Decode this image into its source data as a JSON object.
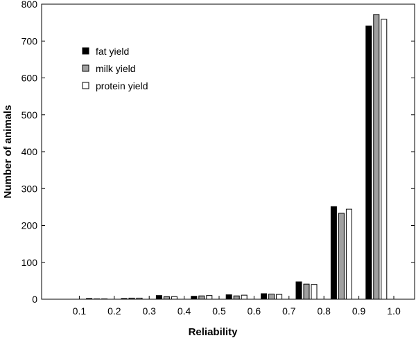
{
  "chart_data": {
    "type": "bar",
    "xlabel": "Reliability",
    "ylabel": "Number of animals",
    "ylim": [
      0,
      800
    ],
    "yticks": [
      0,
      100,
      200,
      300,
      400,
      500,
      600,
      700,
      800
    ],
    "xticks": [
      "0.1",
      "0.2",
      "0.3",
      "0.4",
      "0.5",
      "0.6",
      "0.7",
      "0.8",
      "0.9",
      "1.0"
    ],
    "bin_edges": [
      0.0,
      0.1,
      0.2,
      0.3,
      0.4,
      0.5,
      0.6,
      0.7,
      0.8,
      0.9,
      1.0
    ],
    "legend_position": "top-left",
    "grid": false,
    "series": [
      {
        "name": "fat yield",
        "color": "#000000",
        "values": [
          0,
          2,
          2,
          10,
          8,
          12,
          15,
          47,
          251,
          741
        ]
      },
      {
        "name": "milk yield",
        "color": "#a0a0a0",
        "values": [
          0,
          1,
          3,
          7,
          9,
          9,
          14,
          41,
          233,
          772
        ]
      },
      {
        "name": "protein yield",
        "color": "#ffffff",
        "values": [
          0,
          1,
          3,
          7,
          10,
          11,
          13,
          40,
          244,
          759
        ]
      }
    ]
  }
}
